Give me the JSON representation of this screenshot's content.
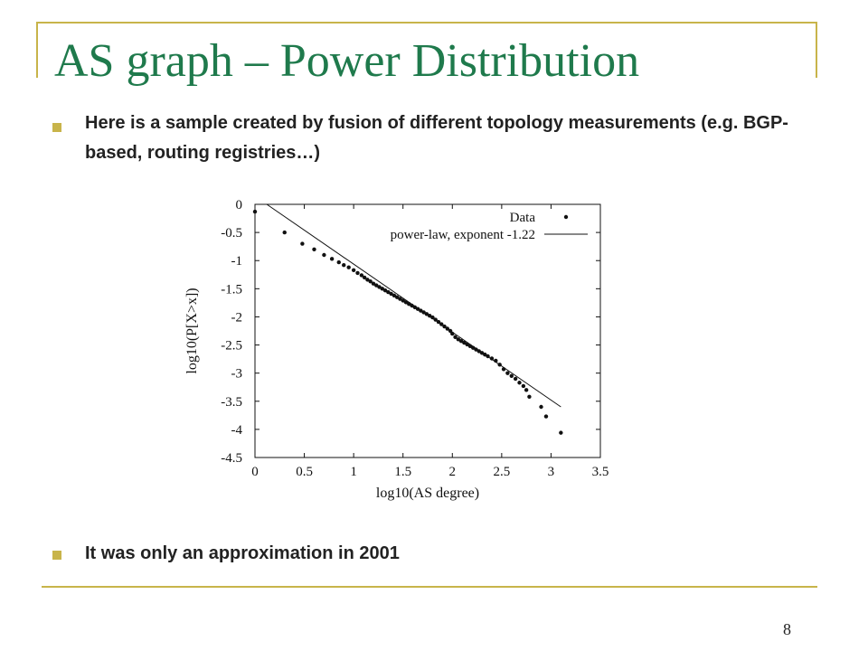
{
  "slide": {
    "title": "AS graph – Power Distribution",
    "bullets": [
      "Here is a sample created by fusion of different topology measurements (e.g. BGP-based, routing registries…)",
      "It was only an approximation in 2001"
    ],
    "page_number": "8",
    "colors": {
      "title": "#1f7a4c",
      "accent": "#c8b44a",
      "text": "#222222"
    },
    "bullet_icon": "square-bullet-icon"
  },
  "chart_data": {
    "type": "scatter",
    "title": "",
    "xlabel": "log10(AS degree)",
    "ylabel": "log10(P[X>x])",
    "xlim": [
      0,
      3.5
    ],
    "ylim": [
      -4.5,
      0
    ],
    "x_ticks": [
      "0",
      "0.5",
      "1",
      "1.5",
      "2",
      "2.5",
      "3",
      "3.5"
    ],
    "y_ticks": [
      "0",
      "-0.5",
      "-1",
      "-1.5",
      "-2",
      "-2.5",
      "-3",
      "-3.5",
      "-4",
      "-4.5"
    ],
    "x_tick_values": [
      0,
      0.5,
      1,
      1.5,
      2,
      2.5,
      3,
      3.5
    ],
    "y_tick_values": [
      0,
      -0.5,
      -1,
      -1.5,
      -2,
      -2.5,
      -3,
      -3.5,
      -4,
      -4.5
    ],
    "grid": false,
    "legend_position": "top-right",
    "series": [
      {
        "name": "Data",
        "kind": "points",
        "x": [
          0,
          0.3,
          0.48,
          0.6,
          0.7,
          0.78,
          0.85,
          0.9,
          0.95,
          1.0,
          1.04,
          1.08,
          1.11,
          1.14,
          1.17,
          1.2,
          1.23,
          1.26,
          1.29,
          1.32,
          1.35,
          1.38,
          1.41,
          1.44,
          1.47,
          1.5,
          1.53,
          1.56,
          1.59,
          1.62,
          1.65,
          1.68,
          1.71,
          1.74,
          1.77,
          1.8,
          1.83,
          1.86,
          1.89,
          1.92,
          1.95,
          1.98,
          2.0,
          2.03,
          2.06,
          2.09,
          2.12,
          2.15,
          2.18,
          2.21,
          2.24,
          2.27,
          2.3,
          2.33,
          2.36,
          2.4,
          2.44,
          2.48,
          2.52,
          2.56,
          2.6,
          2.64,
          2.68,
          2.72,
          2.75,
          2.78,
          2.9,
          2.95,
          3.1
        ],
        "y": [
          -0.13,
          -0.5,
          -0.7,
          -0.8,
          -0.9,
          -0.97,
          -1.03,
          -1.08,
          -1.12,
          -1.17,
          -1.22,
          -1.26,
          -1.3,
          -1.34,
          -1.37,
          -1.41,
          -1.44,
          -1.47,
          -1.5,
          -1.53,
          -1.56,
          -1.59,
          -1.62,
          -1.65,
          -1.68,
          -1.71,
          -1.74,
          -1.77,
          -1.8,
          -1.83,
          -1.86,
          -1.89,
          -1.92,
          -1.95,
          -1.98,
          -2.01,
          -2.05,
          -2.09,
          -2.13,
          -2.17,
          -2.21,
          -2.25,
          -2.3,
          -2.36,
          -2.4,
          -2.43,
          -2.46,
          -2.49,
          -2.52,
          -2.55,
          -2.58,
          -2.61,
          -2.64,
          -2.67,
          -2.7,
          -2.74,
          -2.78,
          -2.85,
          -2.93,
          -3.0,
          -3.05,
          -3.1,
          -3.17,
          -3.23,
          -3.3,
          -3.42,
          -3.6,
          -3.77,
          -4.06
        ]
      },
      {
        "name": "power-law, exponent -1.22",
        "kind": "line",
        "x": [
          0.12,
          3.1
        ],
        "y": [
          0.0,
          -3.6
        ]
      }
    ]
  }
}
